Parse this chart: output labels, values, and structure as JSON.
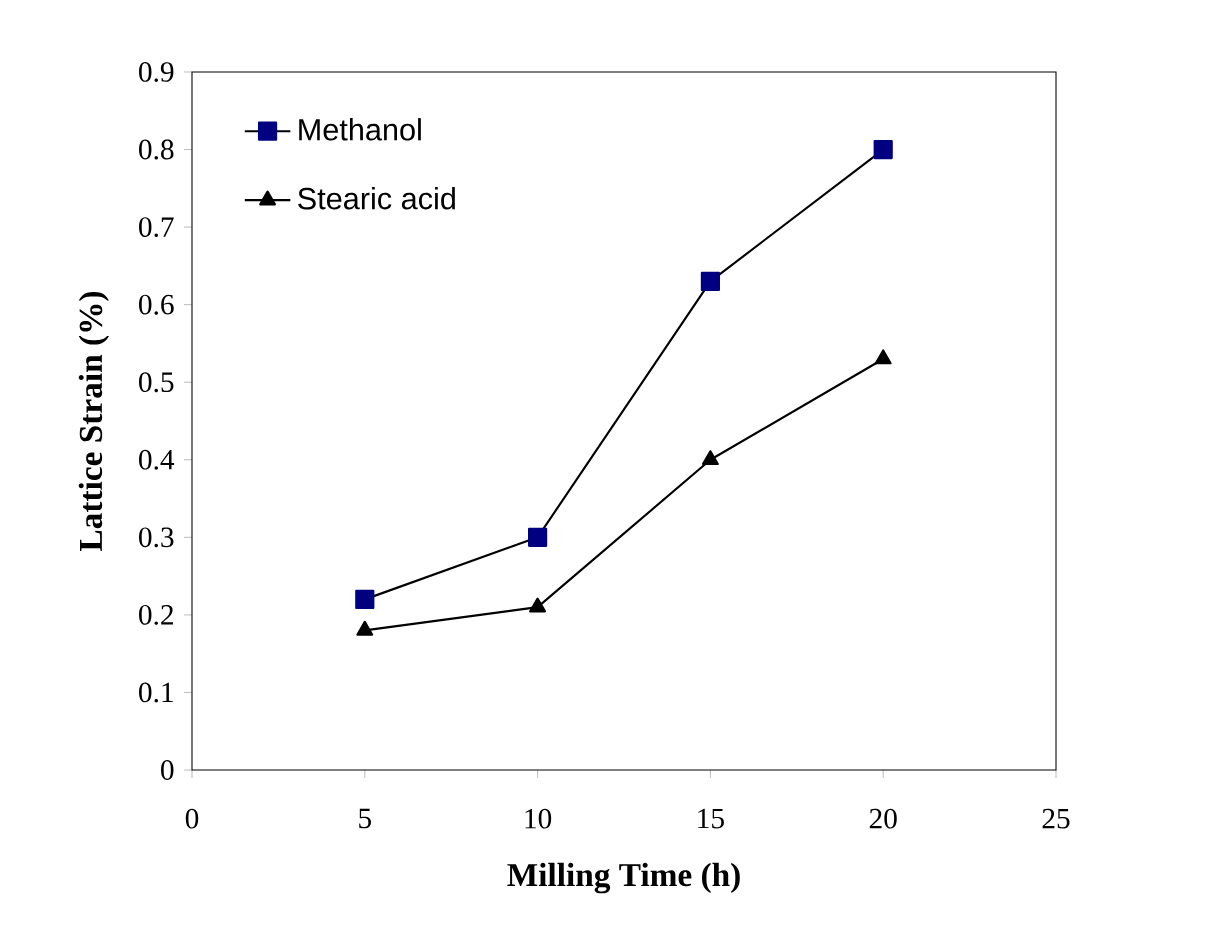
{
  "chart_data": {
    "type": "line",
    "xlabel": "Milling Time (h)",
    "ylabel": "Lattice Strain (%)",
    "x": [
      5,
      10,
      15,
      20
    ],
    "series": [
      {
        "name": "Methanol",
        "color": "#000080",
        "marker": "square",
        "values": [
          0.22,
          0.3,
          0.63,
          0.8
        ]
      },
      {
        "name": "Stearic acid",
        "color": "#000000",
        "marker": "triangle",
        "values": [
          0.18,
          0.21,
          0.4,
          0.53
        ]
      }
    ],
    "xlim": [
      0,
      25
    ],
    "ylim": [
      0,
      0.9
    ],
    "xticks": [
      0,
      5,
      10,
      15,
      20,
      25
    ],
    "yticks": [
      0,
      0.1,
      0.2,
      0.3,
      0.4,
      0.5,
      0.6,
      0.7,
      0.8,
      0.9
    ],
    "grid": false,
    "legend": "top left",
    "line_style": "solid"
  }
}
